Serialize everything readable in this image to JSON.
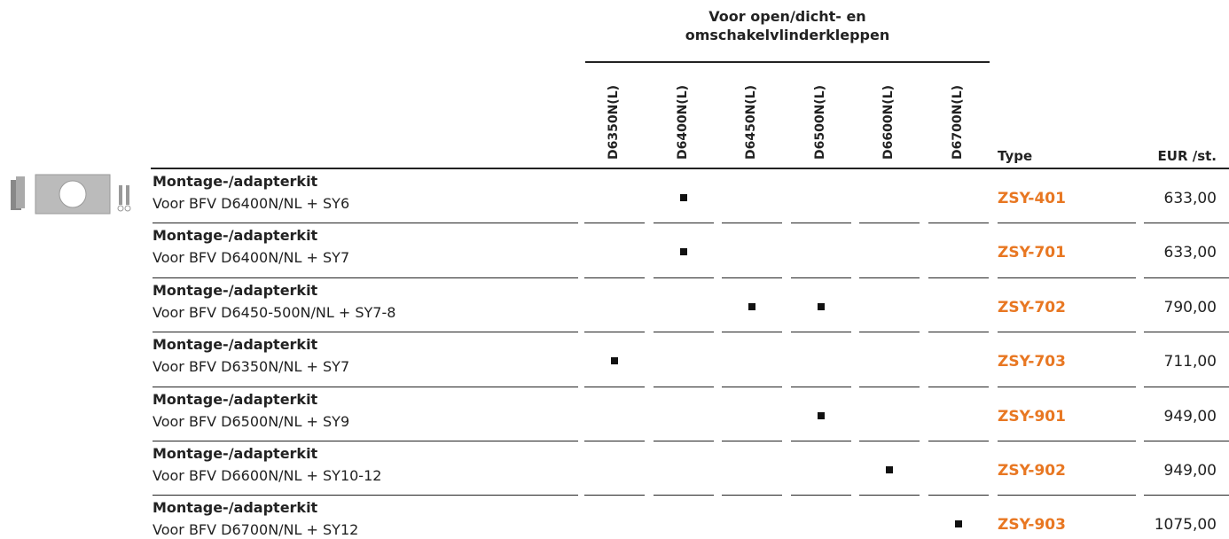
{
  "header": {
    "group_title": "Voor open/dicht- en omschakelvlinderkleppen",
    "columns": [
      "D6350N(L)",
      "D6400N(L)",
      "D6450N(L)",
      "D6500N(L)",
      "D6600N(L)",
      "D6700N(L)"
    ],
    "type_label": "Type",
    "price_label": "EUR /st."
  },
  "table": {
    "rows": [
      {
        "title": "Montage-/adapterkit",
        "subtitle": "Voor BFV D6400N/NL + SY6",
        "marks": [
          false,
          true,
          false,
          false,
          false,
          false
        ],
        "type": "ZSY-401",
        "price": "633,00"
      },
      {
        "title": "Montage-/adapterkit",
        "subtitle": "Voor BFV D6400N/NL + SY7",
        "marks": [
          false,
          true,
          false,
          false,
          false,
          false
        ],
        "type": "ZSY-701",
        "price": "633,00"
      },
      {
        "title": "Montage-/adapterkit",
        "subtitle": "Voor BFV D6450-500N/NL + SY7-8",
        "marks": [
          false,
          false,
          true,
          true,
          false,
          false
        ],
        "type": "ZSY-702",
        "price": "790,00"
      },
      {
        "title": "Montage-/adapterkit",
        "subtitle": "Voor BFV D6350N/NL + SY7",
        "marks": [
          true,
          false,
          false,
          false,
          false,
          false
        ],
        "type": "ZSY-703",
        "price": "711,00"
      },
      {
        "title": "Montage-/adapterkit",
        "subtitle": "Voor BFV D6500N/NL + SY9",
        "marks": [
          false,
          false,
          false,
          true,
          false,
          false
        ],
        "type": "ZSY-901",
        "price": "949,00"
      },
      {
        "title": "Montage-/adapterkit",
        "subtitle": "Voor BFV D6600N/NL + SY10-12",
        "marks": [
          false,
          false,
          false,
          false,
          true,
          false
        ],
        "type": "ZSY-902",
        "price": "949,00"
      },
      {
        "title": "Montage-/adapterkit",
        "subtitle": "Voor BFV D6700N/NL + SY12",
        "marks": [
          false,
          false,
          false,
          false,
          false,
          true
        ],
        "type": "ZSY-903",
        "price": "1075,00"
      }
    ]
  }
}
